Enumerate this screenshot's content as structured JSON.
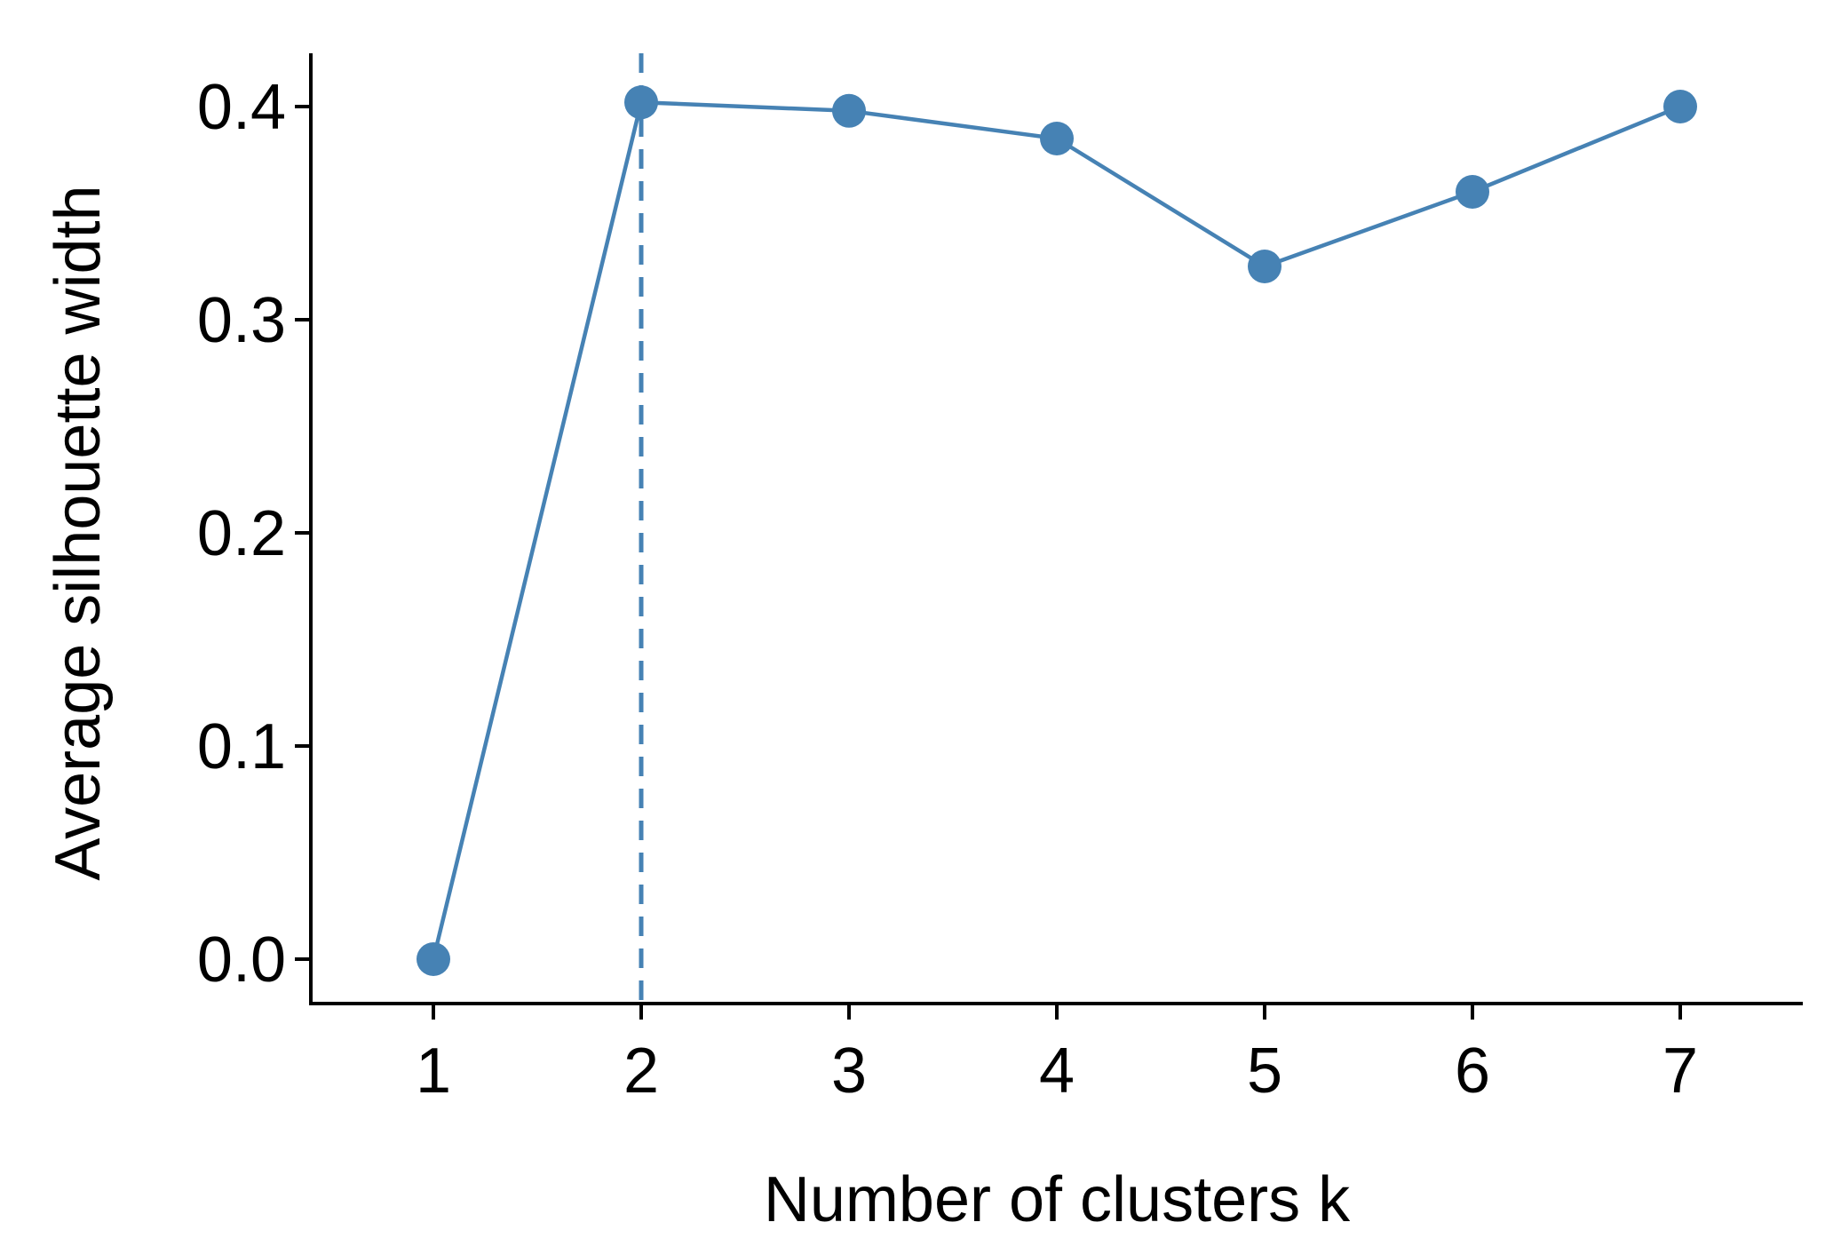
{
  "chart_data": {
    "type": "line",
    "title": "",
    "xlabel": "Number of clusters k",
    "ylabel": "Average silhouette width",
    "x": [
      1,
      2,
      3,
      4,
      5,
      6,
      7
    ],
    "x_tick_labels": [
      "1",
      "2",
      "3",
      "4",
      "5",
      "6",
      "7"
    ],
    "y_ticks": [
      0.0,
      0.1,
      0.2,
      0.3,
      0.4
    ],
    "y_tick_labels": [
      "0.0",
      "0.1",
      "0.2",
      "0.3",
      "0.4"
    ],
    "series": [
      {
        "values": [
          0.0,
          0.402,
          0.398,
          0.385,
          0.325,
          0.36,
          0.4
        ]
      }
    ],
    "optimal_k": 2,
    "xlim": [
      0.4,
      7.6
    ],
    "ylim": [
      -0.02,
      0.42
    ],
    "grid": false,
    "legend": "none",
    "colors": {
      "series": "#4682B4",
      "axis": "#000000"
    }
  }
}
